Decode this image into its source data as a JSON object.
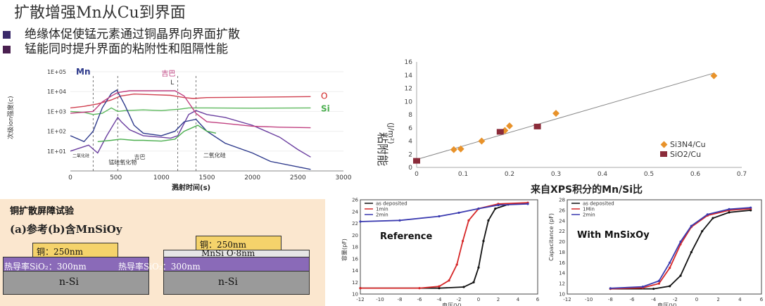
{
  "slide": {
    "title": "扩散增强Mn从Cu到界面",
    "bullets": [
      "绝缘体促使锰元素通过铜晶界向界面扩散",
      "锰能同时提升界面的粘附性和阻隔性能"
    ]
  },
  "colors": {
    "bullet1": "#3a2a6a",
    "bullet2": "#4a2050"
  },
  "chart_data": [
    {
      "type": "line",
      "id": "sims-depth-profile",
      "xlabel": "溅射时间(s)",
      "ylabel": "次级ion强度(c)",
      "scale_y": "log",
      "xlim": [
        0,
        3000
      ],
      "ylim": [
        1,
        100000
      ],
      "xticks": [
        0,
        500,
        1000,
        1500,
        2000,
        2500,
        3000
      ],
      "yticks": [
        {
          "v": 10,
          "label": "1E+01"
        },
        {
          "v": 100,
          "label": "1E+02"
        },
        {
          "v": 1000,
          "label": "1E+03"
        },
        {
          "v": 10000,
          "label": "1E+04"
        },
        {
          "v": 100000,
          "label": "1E+05"
        }
      ],
      "series_labels": [
        {
          "text": "Mn",
          "color": "#2e3a8c"
        },
        {
          "text": "吉巴",
          "color": "#c04080"
        },
        {
          "text": "O",
          "color": "#d02020"
        },
        {
          "text": "Si",
          "color": "#4caf50"
        }
      ],
      "annotations": [
        "L",
        "二氧化硅",
        "吉巴",
        "锰硅氧化物",
        "二氧化硅"
      ],
      "dashed_x": [
        250,
        520,
        1180,
        1380
      ],
      "series": [
        {
          "color": "#d04050",
          "points": [
            [
              0,
              1500
            ],
            [
              150,
              1800
            ],
            [
              300,
              2400
            ],
            [
              450,
              3800
            ],
            [
              550,
              6000
            ],
            [
              700,
              7500
            ],
            [
              900,
              7000
            ],
            [
              1100,
              6500
            ],
            [
              1250,
              5000
            ],
            [
              1350,
              4500
            ],
            [
              1500,
              5000
            ],
            [
              2000,
              5200
            ],
            [
              2640,
              5600
            ]
          ]
        },
        {
          "color": "#5cb85c",
          "points": [
            [
              0,
              1000
            ],
            [
              150,
              900
            ],
            [
              250,
              700
            ],
            [
              350,
              800
            ],
            [
              450,
              1500
            ],
            [
              520,
              1000
            ],
            [
              600,
              1100
            ],
            [
              800,
              1200
            ],
            [
              1000,
              1100
            ],
            [
              1200,
              1300
            ],
            [
              1300,
              1500
            ],
            [
              1500,
              1500
            ],
            [
              2000,
              1450
            ],
            [
              2640,
              1500
            ]
          ]
        },
        {
          "color": "#6b3fa0",
          "points": [
            [
              0,
              10
            ],
            [
              200,
              20
            ],
            [
              300,
              8
            ],
            [
              400,
              60
            ],
            [
              520,
              500
            ],
            [
              560,
              300
            ],
            [
              650,
              120
            ],
            [
              800,
              60
            ],
            [
              1000,
              50
            ],
            [
              1100,
              45
            ],
            [
              1180,
              60
            ],
            [
              1300,
              700
            ],
            [
              1380,
              1100
            ],
            [
              1500,
              700
            ],
            [
              1700,
              500
            ],
            [
              2000,
              200
            ],
            [
              2300,
              50
            ],
            [
              2500,
              12
            ],
            [
              2640,
              5
            ]
          ]
        },
        {
          "color": "#2e3a8c",
          "points": [
            [
              0,
              60
            ],
            [
              150,
              30
            ],
            [
              250,
              100
            ],
            [
              350,
              1500
            ],
            [
              450,
              8000
            ],
            [
              510,
              12000
            ],
            [
              600,
              2000
            ],
            [
              700,
              200
            ],
            [
              800,
              80
            ],
            [
              1000,
              60
            ],
            [
              1150,
              100
            ],
            [
              1250,
              300
            ],
            [
              1380,
              400
            ],
            [
              1500,
              100
            ],
            [
              1700,
              25
            ],
            [
              2000,
              8
            ],
            [
              2200,
              3
            ],
            [
              2640,
              1.2
            ]
          ]
        },
        {
          "color": "#c04080",
          "points": [
            [
              0,
              800
            ],
            [
              250,
              1000
            ],
            [
              350,
              3000
            ],
            [
              450,
              6000
            ],
            [
              520,
              9000
            ],
            [
              650,
              11000
            ],
            [
              1000,
              11000
            ],
            [
              1150,
              11000
            ],
            [
              1250,
              6000
            ],
            [
              1380,
              800
            ],
            [
              1500,
              300
            ],
            [
              1700,
              250
            ],
            [
              2000,
              180
            ],
            [
              2300,
              160
            ],
            [
              2640,
              150
            ]
          ]
        },
        {
          "color": "#4caf50",
          "points": [
            [
              300,
              30
            ],
            [
              450,
              35
            ],
            [
              550,
              40
            ],
            [
              700,
              35
            ],
            [
              800,
              35
            ],
            [
              1000,
              32
            ],
            [
              1150,
              40
            ],
            [
              1250,
              100
            ],
            [
              1400,
              200
            ],
            [
              1500,
              100
            ],
            [
              1600,
              80
            ]
          ]
        }
      ]
    },
    {
      "type": "scatter",
      "id": "adhesion-vs-mnsi",
      "xlabel": "来自XPS积分的Mn/Si比",
      "ylabel": "粘附能",
      "ylabel_unit": "(J/m²)",
      "xlim": [
        0,
        0.7
      ],
      "ylim": [
        0,
        16
      ],
      "xticks": [
        0,
        0.1,
        0.2,
        0.3,
        0.4,
        0.5,
        0.6,
        0.7
      ],
      "yticks": [
        0,
        2,
        4,
        6,
        8,
        10,
        12,
        14,
        16
      ],
      "series": [
        {
          "name": "Si3N4/Cu",
          "color": "#e8922a",
          "marker": "diamond",
          "points": [
            [
              0.08,
              2.7
            ],
            [
              0.095,
              2.8
            ],
            [
              0.14,
              4.0
            ],
            [
              0.19,
              5.6
            ],
            [
              0.2,
              6.3
            ],
            [
              0.3,
              8.2
            ],
            [
              0.64,
              13.9
            ]
          ]
        },
        {
          "name": "SiO2/Cu",
          "color": "#8b2c3a",
          "marker": "square",
          "points": [
            [
              0,
              1.0
            ],
            [
              0.18,
              5.4
            ],
            [
              0.26,
              6.2
            ]
          ]
        }
      ],
      "fit_line": [
        [
          0,
          1.2
        ],
        [
          0.64,
          14.3
        ]
      ]
    },
    {
      "type": "line",
      "id": "cv-reference",
      "panel_label": "Reference",
      "xlabel": "电压(V)",
      "ylabel": "容量(pF)",
      "xlim": [
        -12,
        6
      ],
      "ylim": [
        10,
        26
      ],
      "xticks": [
        -12,
        -10,
        -8,
        -6,
        -4,
        -2,
        0,
        2,
        4,
        6
      ],
      "yticks": [
        10,
        12,
        14,
        16,
        18,
        20,
        22,
        24,
        26
      ],
      "series": [
        {
          "name": "as deposited",
          "color": "#111111",
          "points": [
            [
              -12,
              11
            ],
            [
              -4,
              11
            ],
            [
              -1.5,
              11.2
            ],
            [
              -0.5,
              12
            ],
            [
              0,
              14.5
            ],
            [
              0.5,
              19
            ],
            [
              1,
              22.5
            ],
            [
              1.7,
              24.5
            ],
            [
              3,
              25.2
            ],
            [
              5,
              25.4
            ]
          ]
        },
        {
          "name": "1min",
          "color": "#d62728",
          "points": [
            [
              -12,
              11
            ],
            [
              -6,
              11
            ],
            [
              -4,
              11.3
            ],
            [
              -3,
              12.3
            ],
            [
              -2.2,
              15
            ],
            [
              -1.6,
              19
            ],
            [
              -1,
              22.5
            ],
            [
              0,
              24.5
            ],
            [
              2,
              25.3
            ],
            [
              5,
              25.5
            ]
          ]
        },
        {
          "name": "2min",
          "color": "#3b3bb0",
          "points": [
            [
              -12,
              22.3
            ],
            [
              -8,
              22.5
            ],
            [
              -4,
              23.2
            ],
            [
              -2,
              23.8
            ],
            [
              0,
              24.5
            ],
            [
              2,
              25.1
            ],
            [
              5,
              25.3
            ]
          ]
        }
      ]
    },
    {
      "type": "line",
      "id": "cv-mnsixoy",
      "panel_label": "With MnSixOy",
      "xlabel": "电压(V)",
      "ylabel": "Capacitance (pF)",
      "xlim": [
        -12,
        6
      ],
      "ylim": [
        10,
        28
      ],
      "xticks": [
        -12,
        -10,
        -8,
        -6,
        -4,
        -2,
        0,
        2,
        4,
        6
      ],
      "yticks": [
        10,
        12,
        14,
        16,
        18,
        20,
        22,
        24,
        26,
        28
      ],
      "series": [
        {
          "name": "as deposited",
          "color": "#111111",
          "points": [
            [
              -8,
              11
            ],
            [
              -4,
              11
            ],
            [
              -2.5,
              11.5
            ],
            [
              -1.5,
              13.5
            ],
            [
              -0.5,
              18
            ],
            [
              0.5,
              22
            ],
            [
              1.5,
              24.5
            ],
            [
              3,
              25.6
            ],
            [
              5,
              26
            ]
          ]
        },
        {
          "name": "1Min",
          "color": "#d62728",
          "points": [
            [
              -8,
              11
            ],
            [
              -5,
              11.2
            ],
            [
              -3.5,
              12
            ],
            [
              -2.5,
              15
            ],
            [
              -1.5,
              19.5
            ],
            [
              -0.5,
              22.8
            ],
            [
              1,
              25
            ],
            [
              3,
              26
            ],
            [
              5,
              26.3
            ]
          ]
        },
        {
          "name": "2min",
          "color": "#3b3bb0",
          "points": [
            [
              -8,
              11.1
            ],
            [
              -5,
              11.4
            ],
            [
              -3.5,
              12.5
            ],
            [
              -2.5,
              16
            ],
            [
              -1.5,
              20
            ],
            [
              -0.5,
              23
            ],
            [
              1,
              25.2
            ],
            [
              3,
              26.2
            ],
            [
              5,
              26.5
            ]
          ]
        }
      ]
    }
  ],
  "experiment": {
    "title": "铜扩散屏障试验",
    "subtitle": "(a)参考(b)含MnSiOy",
    "a": {
      "cu": "铜：250nm",
      "sio2": "热导率SiO₂：300nm",
      "si": "n-Si"
    },
    "b": {
      "cu": "铜：250nm",
      "mnsio": "MnSi O·8nm",
      "sio2": "热导率SiO₂：300nm",
      "si": "n-Si"
    }
  }
}
